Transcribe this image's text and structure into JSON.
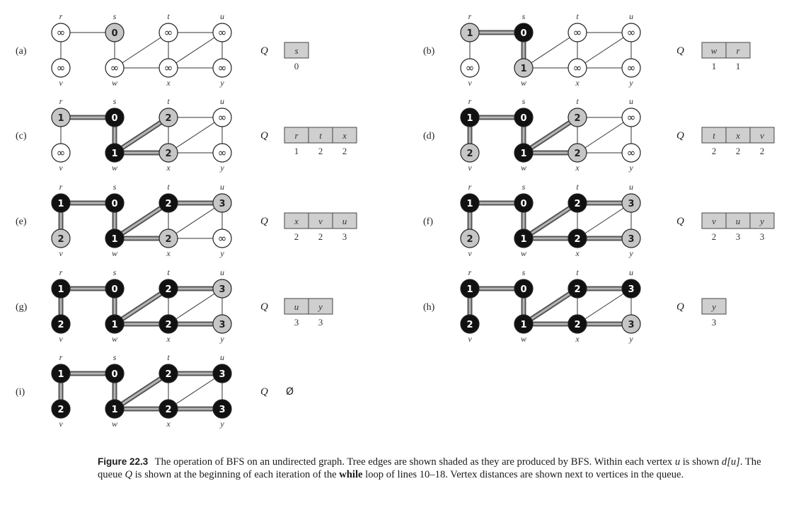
{
  "vertex_names": [
    "r",
    "s",
    "t",
    "u",
    "v",
    "w",
    "x",
    "y"
  ],
  "edges": [
    [
      "r",
      "s"
    ],
    [
      "r",
      "v"
    ],
    [
      "s",
      "w"
    ],
    [
      "w",
      "t"
    ],
    [
      "w",
      "x"
    ],
    [
      "t",
      "x"
    ],
    [
      "t",
      "u"
    ],
    [
      "x",
      "u"
    ],
    [
      "x",
      "y"
    ],
    [
      "u",
      "y"
    ]
  ],
  "infinity_symbol": "∞",
  "queue_label": "Q",
  "empty_queue_symbol": "Ø",
  "panels": [
    {
      "label": "(a)",
      "vertices": {
        "r": {
          "d": "∞",
          "color": "white"
        },
        "s": {
          "d": "0",
          "color": "gray"
        },
        "t": {
          "d": "∞",
          "color": "white"
        },
        "u": {
          "d": "∞",
          "color": "white"
        },
        "v": {
          "d": "∞",
          "color": "white"
        },
        "w": {
          "d": "∞",
          "color": "white"
        },
        "x": {
          "d": "∞",
          "color": "white"
        },
        "y": {
          "d": "∞",
          "color": "white"
        }
      },
      "tree_edges": [],
      "queue": [
        {
          "vertex": "s",
          "dist": "0"
        }
      ]
    },
    {
      "label": "(b)",
      "vertices": {
        "r": {
          "d": "1",
          "color": "gray"
        },
        "s": {
          "d": "0",
          "color": "black"
        },
        "t": {
          "d": "∞",
          "color": "white"
        },
        "u": {
          "d": "∞",
          "color": "white"
        },
        "v": {
          "d": "∞",
          "color": "white"
        },
        "w": {
          "d": "1",
          "color": "gray"
        },
        "x": {
          "d": "∞",
          "color": "white"
        },
        "y": {
          "d": "∞",
          "color": "white"
        }
      },
      "tree_edges": [
        [
          "r",
          "s"
        ],
        [
          "s",
          "w"
        ]
      ],
      "queue": [
        {
          "vertex": "w",
          "dist": "1"
        },
        {
          "vertex": "r",
          "dist": "1"
        }
      ]
    },
    {
      "label": "(c)",
      "vertices": {
        "r": {
          "d": "1",
          "color": "gray"
        },
        "s": {
          "d": "0",
          "color": "black"
        },
        "t": {
          "d": "2",
          "color": "gray"
        },
        "u": {
          "d": "∞",
          "color": "white"
        },
        "v": {
          "d": "∞",
          "color": "white"
        },
        "w": {
          "d": "1",
          "color": "black"
        },
        "x": {
          "d": "2",
          "color": "gray"
        },
        "y": {
          "d": "∞",
          "color": "white"
        }
      },
      "tree_edges": [
        [
          "r",
          "s"
        ],
        [
          "s",
          "w"
        ],
        [
          "w",
          "t"
        ],
        [
          "w",
          "x"
        ]
      ],
      "queue": [
        {
          "vertex": "r",
          "dist": "1"
        },
        {
          "vertex": "t",
          "dist": "2"
        },
        {
          "vertex": "x",
          "dist": "2"
        }
      ]
    },
    {
      "label": "(d)",
      "vertices": {
        "r": {
          "d": "1",
          "color": "black"
        },
        "s": {
          "d": "0",
          "color": "black"
        },
        "t": {
          "d": "2",
          "color": "gray"
        },
        "u": {
          "d": "∞",
          "color": "white"
        },
        "v": {
          "d": "2",
          "color": "gray"
        },
        "w": {
          "d": "1",
          "color": "black"
        },
        "x": {
          "d": "2",
          "color": "gray"
        },
        "y": {
          "d": "∞",
          "color": "white"
        }
      },
      "tree_edges": [
        [
          "r",
          "s"
        ],
        [
          "s",
          "w"
        ],
        [
          "w",
          "t"
        ],
        [
          "w",
          "x"
        ],
        [
          "r",
          "v"
        ]
      ],
      "queue": [
        {
          "vertex": "t",
          "dist": "2"
        },
        {
          "vertex": "x",
          "dist": "2"
        },
        {
          "vertex": "v",
          "dist": "2"
        }
      ]
    },
    {
      "label": "(e)",
      "vertices": {
        "r": {
          "d": "1",
          "color": "black"
        },
        "s": {
          "d": "0",
          "color": "black"
        },
        "t": {
          "d": "2",
          "color": "black"
        },
        "u": {
          "d": "3",
          "color": "gray"
        },
        "v": {
          "d": "2",
          "color": "gray"
        },
        "w": {
          "d": "1",
          "color": "black"
        },
        "x": {
          "d": "2",
          "color": "gray"
        },
        "y": {
          "d": "∞",
          "color": "white"
        }
      },
      "tree_edges": [
        [
          "r",
          "s"
        ],
        [
          "s",
          "w"
        ],
        [
          "w",
          "t"
        ],
        [
          "w",
          "x"
        ],
        [
          "r",
          "v"
        ],
        [
          "t",
          "u"
        ]
      ],
      "queue": [
        {
          "vertex": "x",
          "dist": "2"
        },
        {
          "vertex": "v",
          "dist": "2"
        },
        {
          "vertex": "u",
          "dist": "3"
        }
      ]
    },
    {
      "label": "(f)",
      "vertices": {
        "r": {
          "d": "1",
          "color": "black"
        },
        "s": {
          "d": "0",
          "color": "black"
        },
        "t": {
          "d": "2",
          "color": "black"
        },
        "u": {
          "d": "3",
          "color": "gray"
        },
        "v": {
          "d": "2",
          "color": "gray"
        },
        "w": {
          "d": "1",
          "color": "black"
        },
        "x": {
          "d": "2",
          "color": "black"
        },
        "y": {
          "d": "3",
          "color": "gray"
        }
      },
      "tree_edges": [
        [
          "r",
          "s"
        ],
        [
          "s",
          "w"
        ],
        [
          "w",
          "t"
        ],
        [
          "w",
          "x"
        ],
        [
          "r",
          "v"
        ],
        [
          "t",
          "u"
        ],
        [
          "x",
          "y"
        ]
      ],
      "queue": [
        {
          "vertex": "v",
          "dist": "2"
        },
        {
          "vertex": "u",
          "dist": "3"
        },
        {
          "vertex": "y",
          "dist": "3"
        }
      ]
    },
    {
      "label": "(g)",
      "vertices": {
        "r": {
          "d": "1",
          "color": "black"
        },
        "s": {
          "d": "0",
          "color": "black"
        },
        "t": {
          "d": "2",
          "color": "black"
        },
        "u": {
          "d": "3",
          "color": "gray"
        },
        "v": {
          "d": "2",
          "color": "black"
        },
        "w": {
          "d": "1",
          "color": "black"
        },
        "x": {
          "d": "2",
          "color": "black"
        },
        "y": {
          "d": "3",
          "color": "gray"
        }
      },
      "tree_edges": [
        [
          "r",
          "s"
        ],
        [
          "s",
          "w"
        ],
        [
          "w",
          "t"
        ],
        [
          "w",
          "x"
        ],
        [
          "r",
          "v"
        ],
        [
          "t",
          "u"
        ],
        [
          "x",
          "y"
        ]
      ],
      "queue": [
        {
          "vertex": "u",
          "dist": "3"
        },
        {
          "vertex": "y",
          "dist": "3"
        }
      ]
    },
    {
      "label": "(h)",
      "vertices": {
        "r": {
          "d": "1",
          "color": "black"
        },
        "s": {
          "d": "0",
          "color": "black"
        },
        "t": {
          "d": "2",
          "color": "black"
        },
        "u": {
          "d": "3",
          "color": "black"
        },
        "v": {
          "d": "2",
          "color": "black"
        },
        "w": {
          "d": "1",
          "color": "black"
        },
        "x": {
          "d": "2",
          "color": "black"
        },
        "y": {
          "d": "3",
          "color": "gray"
        }
      },
      "tree_edges": [
        [
          "r",
          "s"
        ],
        [
          "s",
          "w"
        ],
        [
          "w",
          "t"
        ],
        [
          "w",
          "x"
        ],
        [
          "r",
          "v"
        ],
        [
          "t",
          "u"
        ],
        [
          "x",
          "y"
        ]
      ],
      "queue": [
        {
          "vertex": "y",
          "dist": "3"
        }
      ]
    },
    {
      "label": "(i)",
      "vertices": {
        "r": {
          "d": "1",
          "color": "black"
        },
        "s": {
          "d": "0",
          "color": "black"
        },
        "t": {
          "d": "2",
          "color": "black"
        },
        "u": {
          "d": "3",
          "color": "black"
        },
        "v": {
          "d": "2",
          "color": "black"
        },
        "w": {
          "d": "1",
          "color": "black"
        },
        "x": {
          "d": "2",
          "color": "black"
        },
        "y": {
          "d": "3",
          "color": "black"
        }
      },
      "tree_edges": [
        [
          "r",
          "s"
        ],
        [
          "s",
          "w"
        ],
        [
          "w",
          "t"
        ],
        [
          "w",
          "x"
        ],
        [
          "r",
          "v"
        ],
        [
          "t",
          "u"
        ],
        [
          "x",
          "y"
        ]
      ],
      "queue": []
    }
  ],
  "caption": {
    "label": "Figure 22.3",
    "part1": "The operation of BFS on an undirected graph. Tree edges are shown shaded as they are produced by BFS. Within each vertex ",
    "u_var": "u",
    "part2": " is shown ",
    "d_expr": "d[u]",
    "part3": ". The queue ",
    "q_var": "Q",
    "part4": " is shown at the beginning of each iteration of the ",
    "while_kw": "while",
    "part5": " loop of lines 10–18. Vertex distances are shown next to vertices in the queue."
  },
  "colors": {
    "white_fill": "#ffffff",
    "gray_fill": "#c6c6c6",
    "black_fill": "#111111",
    "edge": "#333333",
    "tree_edge_outer": "#555555",
    "tree_edge_inner": "#b5b5b5",
    "queue_cell": "#cfcfcf"
  }
}
